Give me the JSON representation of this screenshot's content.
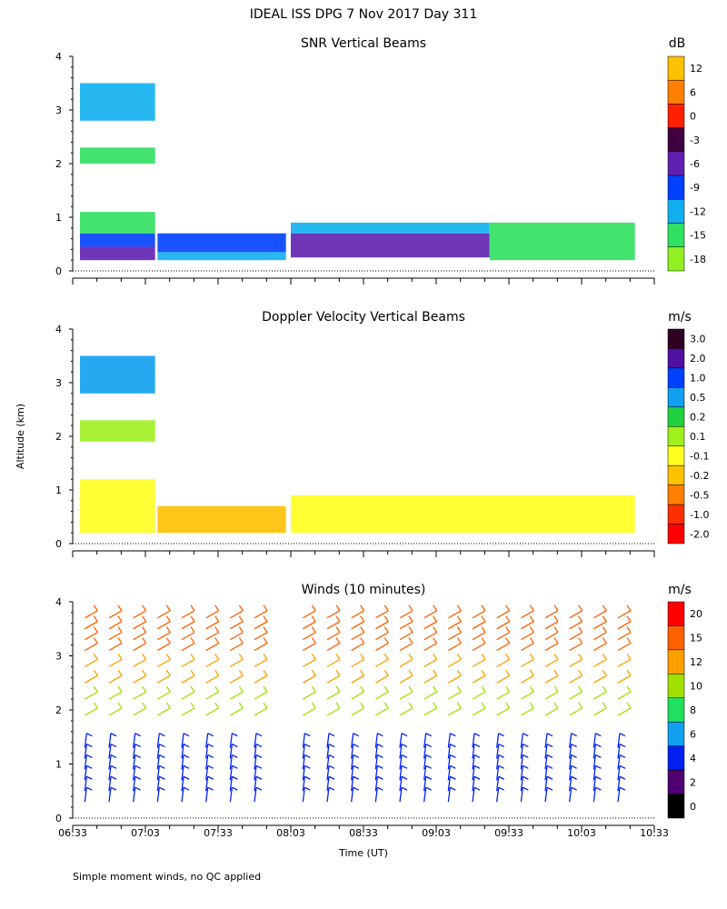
{
  "page_title": "IDEAL ISS DPG    7 Nov 2017 Day 311",
  "footnote": "Simple moment winds, no QC applied",
  "y_axis_label": "Altitude (km)",
  "x_axis_label": "Time (UT)",
  "time_ticks": [
    "06:33",
    "07:03",
    "07:33",
    "08:03",
    "08:33",
    "09:03",
    "09:33",
    "10:03",
    "10:33"
  ],
  "chart_data": [
    {
      "id": "snr",
      "type": "heatmap",
      "title": "SNR Vertical Beams",
      "unit": "dB",
      "x_range_utc": [
        "06:33",
        "10:33"
      ],
      "ylim": [
        0,
        4
      ],
      "y_ticks": [
        "0",
        "1",
        "2",
        "3",
        "4"
      ],
      "colorbar_labels": [
        "12",
        "6",
        "0",
        "-3",
        "-6",
        "-9",
        "-12",
        "-15",
        "-18"
      ],
      "colorbar_colors": [
        "#ffc000",
        "#ff7f00",
        "#ff2000",
        "#400040",
        "#6020b0",
        "#0040ff",
        "#10b0f0",
        "#30e060",
        "#90f020"
      ],
      "regions": [
        {
          "t0": "06:36",
          "t1": "07:07",
          "z0": 0.2,
          "z1": 0.45,
          "level": 4
        },
        {
          "t0": "06:36",
          "t1": "07:07",
          "z0": 0.45,
          "z1": 0.7,
          "level": 5
        },
        {
          "t0": "06:36",
          "t1": "07:07",
          "z0": 0.7,
          "z1": 1.1,
          "level": 7
        },
        {
          "t0": "06:36",
          "t1": "07:07",
          "z0": 2.0,
          "z1": 2.3,
          "level": 7
        },
        {
          "t0": "06:36",
          "t1": "07:07",
          "z0": 2.8,
          "z1": 3.5,
          "level": 6
        },
        {
          "t0": "07:08",
          "t1": "08:01",
          "z0": 0.2,
          "z1": 0.35,
          "level": 6
        },
        {
          "t0": "07:08",
          "t1": "08:01",
          "z0": 0.35,
          "z1": 0.7,
          "level": 5
        },
        {
          "t0": "08:03",
          "t1": "09:25",
          "z0": 0.25,
          "z1": 0.7,
          "level": 4
        },
        {
          "t0": "08:03",
          "t1": "09:25",
          "z0": 0.7,
          "z1": 0.9,
          "level": 6
        },
        {
          "t0": "09:25",
          "t1": "10:25",
          "z0": 0.2,
          "z1": 0.9,
          "level": 7
        }
      ]
    },
    {
      "id": "doppler",
      "type": "heatmap",
      "title": "Doppler Velocity Vertical Beams",
      "unit": "m/s",
      "x_range_utc": [
        "06:33",
        "10:33"
      ],
      "ylim": [
        0,
        4
      ],
      "y_ticks": [
        "0",
        "1",
        "2",
        "3",
        "4"
      ],
      "colorbar_labels": [
        "3.0",
        "2.0",
        "1.0",
        "0.5",
        "0.2",
        "0.1",
        "-0.1",
        "-0.2",
        "-0.5",
        "-1.0",
        "-2.0"
      ],
      "colorbar_colors": [
        "#300020",
        "#5010a0",
        "#0040ff",
        "#10a0f0",
        "#20d040",
        "#a0f020",
        "#ffff20",
        "#ffc000",
        "#ff8000",
        "#ff3000",
        "#ff0000"
      ],
      "regions": [
        {
          "t0": "06:36",
          "t1": "07:07",
          "z0": 0.2,
          "z1": 1.2,
          "level": 6
        },
        {
          "t0": "07:08",
          "t1": "08:01",
          "z0": 0.2,
          "z1": 0.7,
          "level": 7
        },
        {
          "t0": "08:03",
          "t1": "10:25",
          "z0": 0.2,
          "z1": 0.9,
          "level": 6
        },
        {
          "t0": "06:36",
          "t1": "07:07",
          "z0": 1.9,
          "z1": 2.3,
          "level": 5
        },
        {
          "t0": "06:36",
          "t1": "07:07",
          "z0": 2.8,
          "z1": 3.5,
          "level": 3
        }
      ]
    },
    {
      "id": "winds",
      "type": "scatter",
      "title": "Winds (10 minutes)",
      "unit": "m/s",
      "x_range_utc": [
        "06:33",
        "10:33"
      ],
      "ylim": [
        0,
        4
      ],
      "y_ticks": [
        "0",
        "1",
        "2",
        "3",
        "4"
      ],
      "colorbar_labels": [
        "20",
        "15",
        "12",
        "10",
        "8",
        "6",
        "4",
        "2",
        "0"
      ],
      "colorbar_colors": [
        "#ff0000",
        "#ff6000",
        "#ffa000",
        "#a0e000",
        "#20e060",
        "#10a0f0",
        "#0020f0",
        "#500070",
        "#000000"
      ],
      "wind_columns_utc": [
        "06:38",
        "06:48",
        "06:58",
        "07:08",
        "07:18",
        "07:28",
        "07:38",
        "07:48",
        "08:08",
        "08:18",
        "08:28",
        "08:38",
        "08:48",
        "08:58",
        "09:08",
        "09:18",
        "09:28",
        "09:38",
        "09:48",
        "09:58",
        "10:08",
        "10:18"
      ],
      "barb_levels_km": [
        0.3,
        0.5,
        0.7,
        0.9,
        1.1,
        1.3,
        1.9,
        2.2,
        2.5,
        2.8,
        3.1,
        3.3,
        3.5,
        3.7
      ],
      "speed_bands": [
        {
          "z_min": 0.0,
          "z_max": 1.4,
          "speed": 5
        },
        {
          "z_min": 1.8,
          "z_max": 2.4,
          "speed": 11
        },
        {
          "z_min": 2.4,
          "z_max": 3.0,
          "speed": 14
        },
        {
          "z_min": 3.0,
          "z_max": 4.0,
          "speed": 16
        }
      ]
    }
  ]
}
